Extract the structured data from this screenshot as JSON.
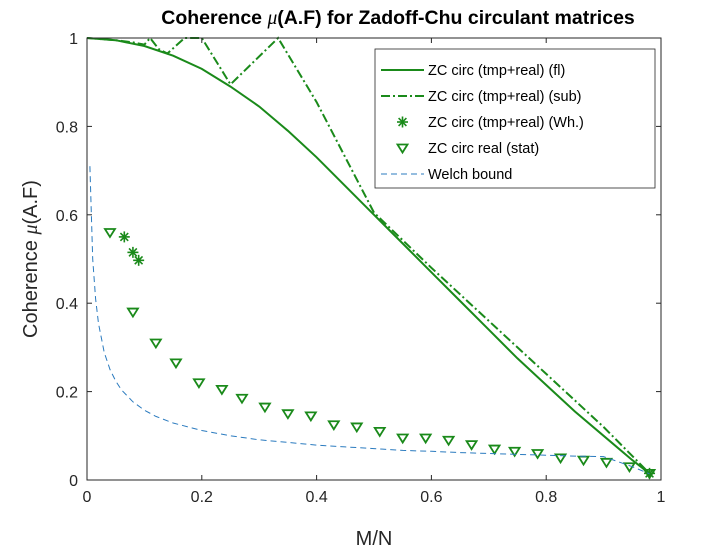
{
  "chart_data": {
    "type": "line",
    "title": {
      "prefix": "Coherence ",
      "mu": "μ",
      "suffix": "(A.F) for Zadoff-Chu circulant matrices"
    },
    "xlabel": "M/N",
    "ylabel": {
      "prefix": "Coherence ",
      "mu": "μ",
      "suffix": "(A.F)"
    },
    "xlim": [
      0,
      1
    ],
    "ylim": [
      0,
      1
    ],
    "xticks": [
      0,
      0.2,
      0.4,
      0.6,
      0.8,
      1
    ],
    "yticks": [
      0,
      0.2,
      0.4,
      0.6,
      0.8,
      1
    ],
    "xtick_labels": [
      "0",
      "0.2",
      "0.4",
      "0.6",
      "0.8",
      "1"
    ],
    "ytick_labels": [
      "0",
      "0.2",
      "0.4",
      "0.6",
      "0.8",
      "1"
    ],
    "grid": false,
    "legend_position": "top-right",
    "series": [
      {
        "name": "ZC circ (tmp+real) (fl)",
        "style": "solid",
        "color": "#1a8a1a",
        "x": [
          0,
          0.05,
          0.1,
          0.15,
          0.2,
          0.25,
          0.3,
          0.35,
          0.4,
          0.45,
          0.5,
          0.55,
          0.6,
          0.65,
          0.7,
          0.75,
          0.8,
          0.85,
          0.9,
          0.95,
          0.98
        ],
        "y": [
          1,
          0.995,
          0.982,
          0.96,
          0.93,
          0.89,
          0.845,
          0.79,
          0.73,
          0.665,
          0.6,
          0.535,
          0.47,
          0.405,
          0.34,
          0.275,
          0.215,
          0.155,
          0.1,
          0.045,
          0.015
        ]
      },
      {
        "name": "ZC circ (tmp+real) (sub)",
        "style": "dashdot",
        "color": "#1a8a1a",
        "x": [
          0,
          0.05,
          0.08,
          0.1,
          0.11,
          0.125,
          0.14,
          0.17,
          0.2,
          0.25,
          0.333,
          0.4,
          0.5,
          0.6,
          0.7,
          0.8,
          0.9,
          0.98
        ],
        "y": [
          1,
          0.995,
          0.99,
          0.985,
          1,
          0.975,
          0.965,
          1,
          1,
          0.895,
          1,
          0.855,
          0.605,
          0.48,
          0.36,
          0.24,
          0.12,
          0.015
        ]
      },
      {
        "name": "ZC circ (tmp+real) (Wh.)",
        "style": "marker-asterisk",
        "color": "#1a8a1a",
        "x": [
          0.065,
          0.08,
          0.09,
          0.98
        ],
        "y": [
          0.55,
          0.515,
          0.497,
          0.015
        ]
      },
      {
        "name": "ZC circ real (stat)",
        "style": "marker-triangle-down",
        "color": "#1a8a1a",
        "x": [
          0.04,
          0.08,
          0.12,
          0.155,
          0.195,
          0.235,
          0.27,
          0.31,
          0.35,
          0.39,
          0.43,
          0.47,
          0.51,
          0.55,
          0.59,
          0.63,
          0.67,
          0.71,
          0.745,
          0.785,
          0.825,
          0.865,
          0.905,
          0.945,
          0.98
        ],
        "y": [
          0.56,
          0.38,
          0.31,
          0.265,
          0.22,
          0.205,
          0.185,
          0.165,
          0.15,
          0.145,
          0.125,
          0.12,
          0.11,
          0.095,
          0.095,
          0.09,
          0.08,
          0.07,
          0.065,
          0.06,
          0.05,
          0.045,
          0.04,
          0.03,
          0.015
        ]
      },
      {
        "name": "Welch bound",
        "style": "dashed",
        "color": "#2b7bbf",
        "x": [
          0.005,
          0.01,
          0.015,
          0.02,
          0.03,
          0.04,
          0.05,
          0.06,
          0.08,
          0.1,
          0.12,
          0.15,
          0.2,
          0.25,
          0.3,
          0.35,
          0.4,
          0.45,
          0.5,
          0.55,
          0.6,
          0.65,
          0.7,
          0.75,
          0.8,
          0.85,
          0.9,
          0.95,
          0.98
        ],
        "y": [
          0.71,
          0.5,
          0.41,
          0.354,
          0.289,
          0.25,
          0.224,
          0.204,
          0.177,
          0.158,
          0.144,
          0.129,
          0.112,
          0.1,
          0.091,
          0.085,
          0.079,
          0.075,
          0.071,
          0.067,
          0.065,
          0.062,
          0.06,
          0.058,
          0.056,
          0.054,
          0.053,
          0.03,
          0.014
        ]
      }
    ]
  }
}
